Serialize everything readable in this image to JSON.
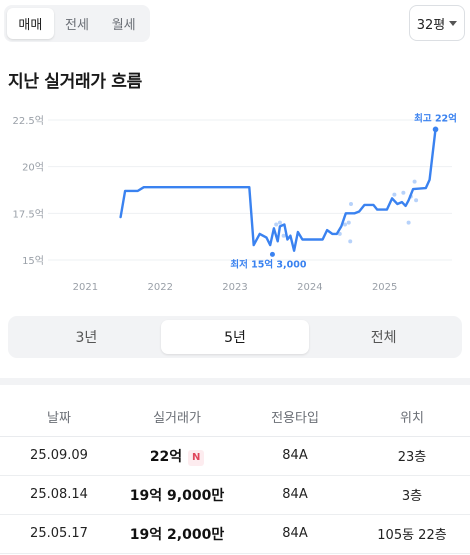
{
  "deal_tabs": [
    "매매",
    "전세",
    "월세"
  ],
  "size": "32평",
  "section_title": "지난 실거래가 흐름",
  "chart_data": {
    "type": "line",
    "title": "",
    "xlabel": "",
    "ylabel": "",
    "x_ticks": [
      "2021",
      "2022",
      "2023",
      "2024",
      "2025"
    ],
    "y_ticks": [
      "22.5억",
      "20억",
      "17.5억",
      "15억"
    ],
    "ylim": [
      15,
      22.5
    ],
    "xlim": [
      2020.5,
      2025.9
    ],
    "grid": "horizontal",
    "color": "#3a82f0",
    "series": [
      {
        "points": [
          [
            2021.47,
            17.3
          ],
          [
            2021.53,
            18.7
          ],
          [
            2021.7,
            18.7
          ],
          [
            2021.78,
            18.9
          ],
          [
            2023.19,
            18.9
          ],
          [
            2023.25,
            15.8
          ],
          [
            2023.33,
            16.4
          ],
          [
            2023.42,
            16.2
          ],
          [
            2023.47,
            15.8
          ],
          [
            2023.52,
            16.7
          ],
          [
            2023.57,
            16.0
          ],
          [
            2023.6,
            16.8
          ],
          [
            2023.66,
            16.9
          ],
          [
            2023.7,
            16.1
          ],
          [
            2023.74,
            16.3
          ],
          [
            2023.79,
            15.5
          ],
          [
            2023.84,
            16.5
          ],
          [
            2023.9,
            16.1
          ],
          [
            2024.17,
            16.1
          ],
          [
            2024.23,
            16.6
          ],
          [
            2024.3,
            16.4
          ],
          [
            2024.36,
            16.4
          ],
          [
            2024.42,
            16.8
          ],
          [
            2024.48,
            17.5
          ],
          [
            2024.6,
            17.5
          ],
          [
            2024.66,
            17.6
          ],
          [
            2024.73,
            17.95
          ],
          [
            2024.85,
            17.95
          ],
          [
            2024.9,
            17.7
          ],
          [
            2025.03,
            17.7
          ],
          [
            2025.1,
            18.3
          ],
          [
            2025.17,
            18.0
          ],
          [
            2025.23,
            18.1
          ],
          [
            2025.28,
            17.9
          ],
          [
            2025.32,
            18.2
          ],
          [
            2025.38,
            18.8
          ],
          [
            2025.55,
            18.85
          ],
          [
            2025.6,
            19.3
          ],
          [
            2025.68,
            22.0
          ]
        ]
      }
    ],
    "scatter": [
      [
        2023.55,
        16.9
      ],
      [
        2023.6,
        17.0
      ],
      [
        2023.65,
        16.3
      ],
      [
        2024.4,
        16.4
      ],
      [
        2024.47,
        16.9
      ],
      [
        2024.52,
        17.0
      ],
      [
        2024.54,
        16.0
      ],
      [
        2024.55,
        18.0
      ],
      [
        2025.13,
        18.5
      ],
      [
        2025.25,
        18.6
      ],
      [
        2025.32,
        17.0
      ],
      [
        2025.35,
        18.4
      ],
      [
        2025.4,
        19.2
      ],
      [
        2025.42,
        18.2
      ]
    ],
    "annotations": {
      "max_label": "최고 22억",
      "max_point": [
        2025.68,
        22.0
      ],
      "min_label": "최저 15억 3,000",
      "min_point": [
        2023.5,
        15.3
      ]
    }
  },
  "period_tabs": [
    "3년",
    "5년",
    "전체"
  ],
  "table": {
    "headers": [
      "날짜",
      "실거래가",
      "전용타입",
      "위치"
    ],
    "rows": [
      {
        "date": "25.09.09",
        "price": "22억",
        "badge": "N",
        "type": "84A",
        "floor": "23층"
      },
      {
        "date": "25.08.14",
        "price": "19억 9,000만",
        "badge": "",
        "type": "84A",
        "floor": "3층"
      },
      {
        "date": "25.05.17",
        "price": "19억 2,000만",
        "badge": "",
        "type": "84A",
        "floor": "105동 22층"
      }
    ]
  }
}
